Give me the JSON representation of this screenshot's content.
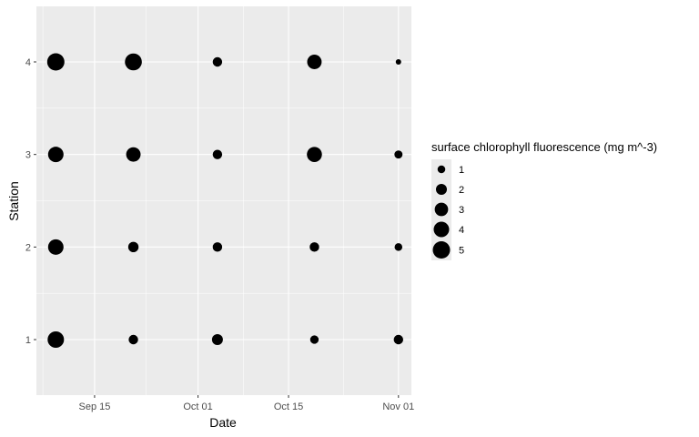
{
  "chart_data": {
    "type": "scatter",
    "xlabel": "Date",
    "ylabel": "Station",
    "x_ticks": [
      "Sep 15",
      "Oct 01",
      "Oct 15",
      "Nov 01"
    ],
    "y_ticks": [
      "1",
      "2",
      "3",
      "4"
    ],
    "x_tick_dates": [
      "2023-09-15",
      "2023-10-01",
      "2023-10-15",
      "2023-11-01"
    ],
    "xlim": [
      "2023-09-06",
      "2023-11-03"
    ],
    "ylim": [
      0.4,
      4.6
    ],
    "grid": true,
    "size_legend": {
      "title": "surface chlorophyll fluorescence (mg m^-3)",
      "values": [
        1,
        2,
        3,
        4,
        5
      ],
      "labels": [
        "1",
        "2",
        "3",
        "4",
        "5"
      ],
      "placement": "right"
    },
    "points": [
      {
        "date": "2023-09-09",
        "station": 4,
        "value": 5.0
      },
      {
        "date": "2023-09-21",
        "station": 4,
        "value": 4.8
      },
      {
        "date": "2023-10-04",
        "station": 4,
        "value": 1.5
      },
      {
        "date": "2023-10-19",
        "station": 4,
        "value": 3.5
      },
      {
        "date": "2023-11-01",
        "station": 4,
        "value": 0.5
      },
      {
        "date": "2023-09-09",
        "station": 3,
        "value": 4.0
      },
      {
        "date": "2023-09-21",
        "station": 3,
        "value": 3.5
      },
      {
        "date": "2023-10-04",
        "station": 3,
        "value": 1.5
      },
      {
        "date": "2023-10-19",
        "station": 3,
        "value": 3.8
      },
      {
        "date": "2023-11-01",
        "station": 3,
        "value": 1.1
      },
      {
        "date": "2023-09-09",
        "station": 2,
        "value": 4.0
      },
      {
        "date": "2023-09-21",
        "station": 2,
        "value": 1.8
      },
      {
        "date": "2023-10-04",
        "station": 2,
        "value": 1.5
      },
      {
        "date": "2023-10-19",
        "station": 2,
        "value": 1.5
      },
      {
        "date": "2023-11-01",
        "station": 2,
        "value": 1.0
      },
      {
        "date": "2023-09-09",
        "station": 1,
        "value": 4.5
      },
      {
        "date": "2023-09-21",
        "station": 1,
        "value": 1.5
      },
      {
        "date": "2023-10-04",
        "station": 1,
        "value": 2.0
      },
      {
        "date": "2023-10-19",
        "station": 1,
        "value": 1.2
      },
      {
        "date": "2023-11-01",
        "station": 1,
        "value": 1.5
      }
    ],
    "colors": {
      "panel_bg": "#EBEBEB",
      "grid": "#FFFFFF",
      "point": "#000000"
    }
  }
}
